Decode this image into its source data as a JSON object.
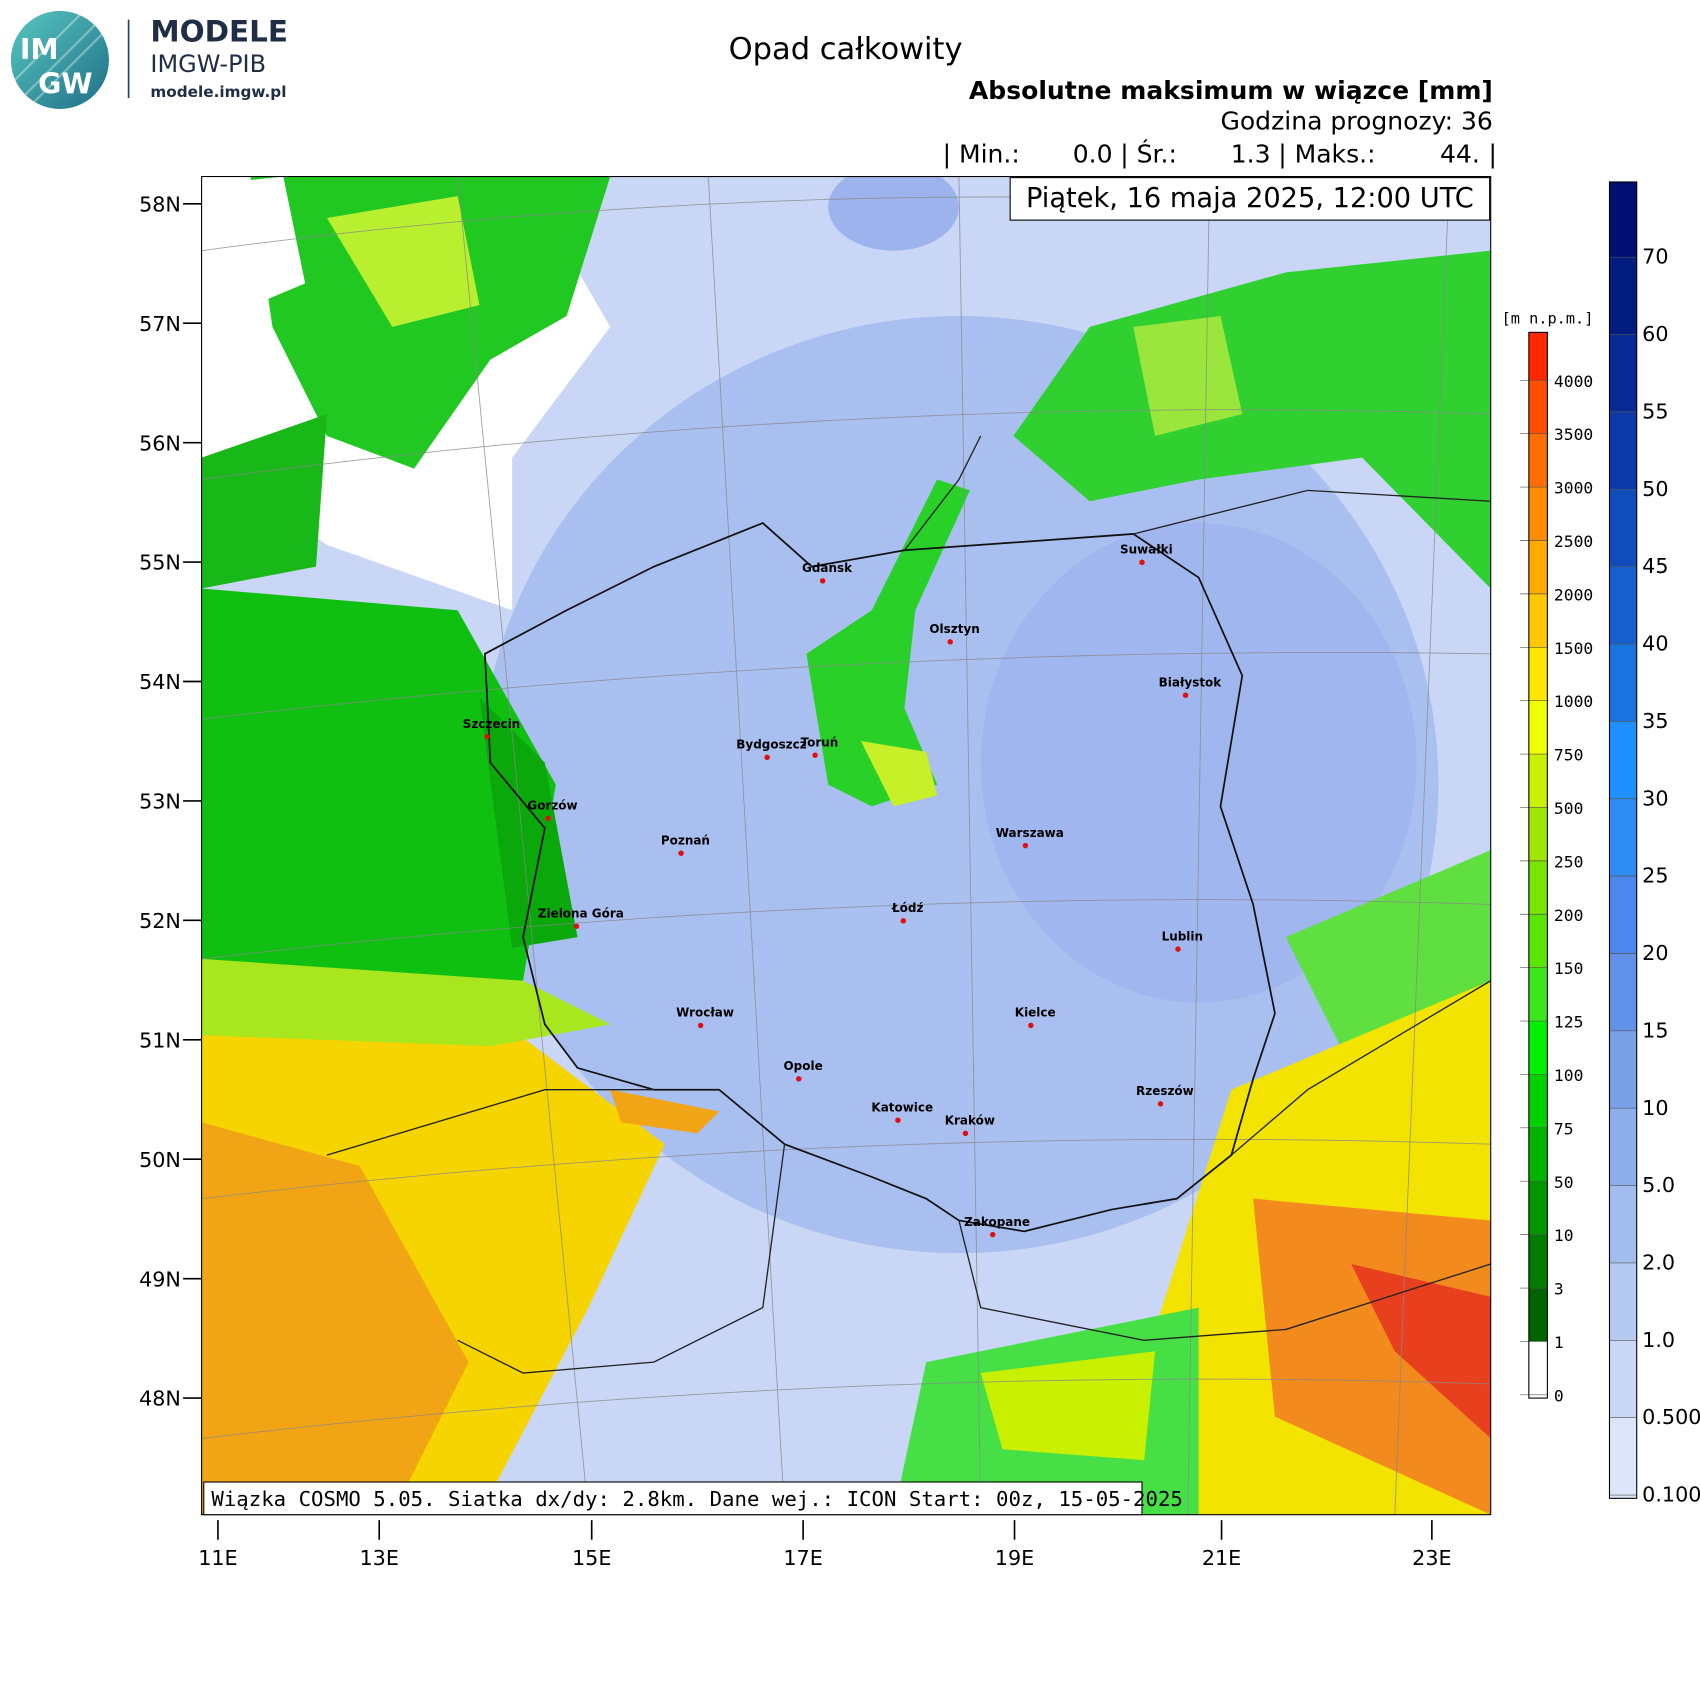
{
  "logo": {
    "badge_top": "IM",
    "badge_bottom": "GW",
    "name": "MODELE",
    "org": "IMGW-PIB",
    "url": "modele.imgw.pl"
  },
  "header": {
    "title": "Opad całkowity",
    "subtitle": "Absolutne maksimum w wiązce [mm]",
    "forecast_hour": "Godzina prognozy: 36",
    "stats": [
      "| Min.:",
      "0.0",
      "| Śr.:",
      "1.3",
      "| Maks.:",
      "44.",
      "|"
    ]
  },
  "map": {
    "valid_time": "Piątek, 16 maja 2025, 12:00 UTC",
    "footer": "Wiązka COSMO 5.05. Siatka dx/dy: 2.8km. Dane wej.: ICON Start: 00z, 15-05-2025",
    "lat_labels": [
      "58N",
      "57N",
      "56N",
      "55N",
      "54N",
      "53N",
      "52N",
      "51N",
      "50N",
      "49N",
      "48N"
    ],
    "lon_labels": [
      "11E",
      "13E",
      "15E",
      "17E",
      "19E",
      "21E",
      "23E"
    ],
    "cities": [
      "Gdańsk",
      "Olsztyn",
      "Suwałki",
      "Białystok",
      "Szczecin",
      "Bydgoszcz",
      "Toruń",
      "Gorzów",
      "Poznań",
      "Warszawa",
      "Zielona Góra",
      "Łódź",
      "Lublin",
      "Wrocław",
      "Kielce",
      "Opole",
      "Rzeszów",
      "Katowice",
      "Kraków",
      "Zakopane"
    ]
  },
  "terrain_scale": {
    "title": "[m n.p.m.]",
    "labels": [
      "0",
      "1",
      "3",
      "10",
      "50",
      "75",
      "100",
      "125",
      "150",
      "200",
      "250",
      "500",
      "750",
      "1000",
      "1500",
      "2000",
      "2500",
      "3000",
      "3500",
      "4000"
    ]
  },
  "precip_scale": {
    "labels": [
      "0.100",
      "0.500",
      "1.0",
      "2.0",
      "5.0",
      "10",
      "15",
      "20",
      "25",
      "30",
      "35",
      "40",
      "45",
      "50",
      "55",
      "60",
      "70"
    ]
  }
}
